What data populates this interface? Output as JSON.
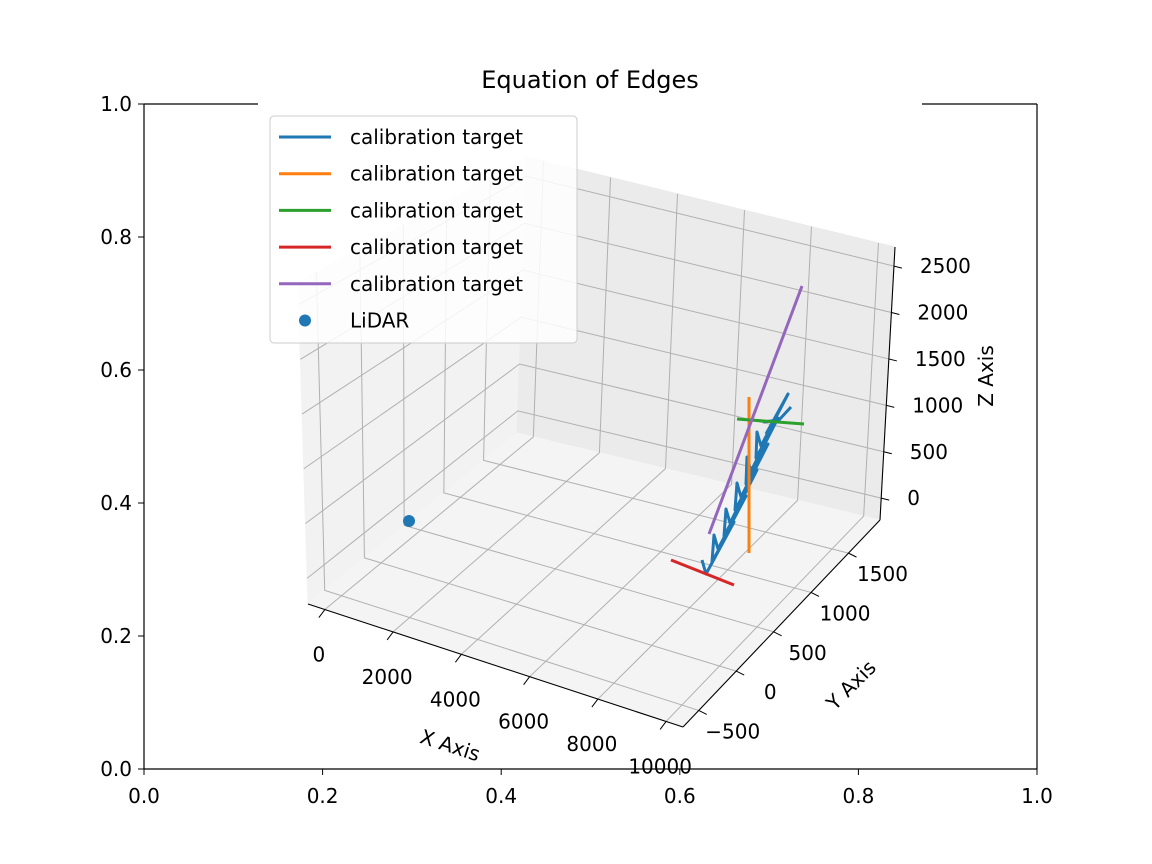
{
  "chart_data": {
    "type": "line",
    "projection": "3d",
    "title": "Equation of Edges",
    "axes_2d": {
      "x_ticks": [
        "0.0",
        "0.2",
        "0.4",
        "0.6",
        "0.8",
        "1.0"
      ],
      "y_ticks": [
        "0.0",
        "0.2",
        "0.4",
        "0.6",
        "0.8",
        "1.0"
      ],
      "xlim": [
        0,
        1
      ],
      "ylim": [
        0,
        1
      ]
    },
    "axes_3d": {
      "xlabel": "X Axis",
      "ylabel": "Y Axis",
      "zlabel": "Z Axis",
      "x_ticks": [
        "0",
        "2000",
        "4000",
        "6000",
        "8000",
        "10000"
      ],
      "y_ticks": [
        "−500",
        "0",
        "500",
        "1000",
        "1500"
      ],
      "z_ticks": [
        "0",
        "500",
        "1000",
        "1500",
        "2000",
        "2500"
      ],
      "grid": true
    },
    "legend": {
      "placement": "upper-left",
      "entries": [
        {
          "label": "calibration target",
          "color": "#1f77b4",
          "marker": "line"
        },
        {
          "label": "calibration target",
          "color": "#ff7f0e",
          "marker": "line"
        },
        {
          "label": "calibration target",
          "color": "#2ca02c",
          "marker": "line"
        },
        {
          "label": "calibration target",
          "color": "#d62728",
          "marker": "line"
        },
        {
          "label": "calibration target",
          "color": "#9467bd",
          "marker": "line"
        },
        {
          "label": "LiDAR",
          "color": "#1f77b4",
          "marker": "dot"
        }
      ]
    }
  }
}
